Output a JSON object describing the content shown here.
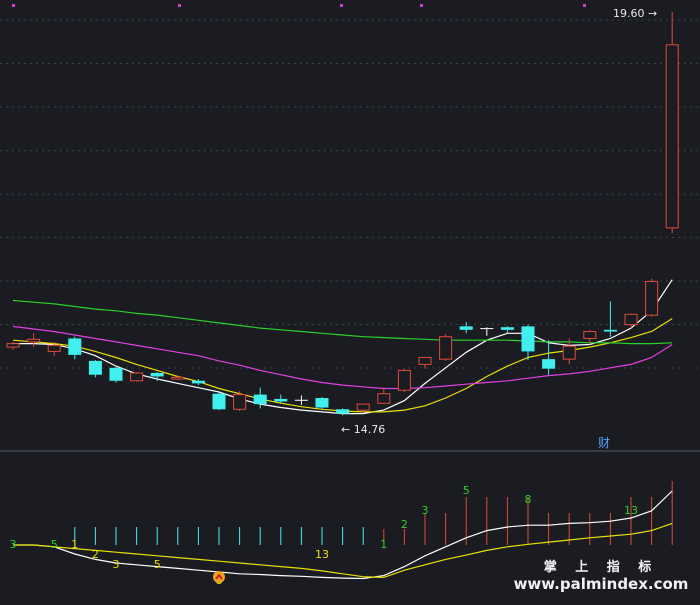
{
  "labels": {
    "high_price": "19.60",
    "low_price": "14.76",
    "finance_marker": "财",
    "watermark_cn": "掌 上 指 标",
    "watermark_url": "www.palmindex.com"
  },
  "colors": {
    "background": "#1a1c22",
    "up": "#e04a3a",
    "down": "#3ff0ee",
    "ma_white": "#ffffff",
    "ma_yellow": "#e8e000",
    "ma_magenta": "#e040e0",
    "ma_green": "#2ad02a",
    "count_green": "#2ad02a",
    "count_yellow": "#e8e000"
  },
  "chart_data": {
    "type": "candlestick",
    "price_axis_extremes": {
      "high": 19.6,
      "low": 14.76
    },
    "candles": [
      {
        "o": 15.76,
        "h": 15.78,
        "l": 15.69,
        "c": 15.72,
        "dir": "up"
      },
      {
        "o": 15.78,
        "h": 15.88,
        "l": 15.72,
        "c": 15.81,
        "dir": "up"
      },
      {
        "o": 15.67,
        "h": 15.78,
        "l": 15.62,
        "c": 15.74,
        "dir": "up"
      },
      {
        "o": 15.82,
        "h": 15.84,
        "l": 15.58,
        "c": 15.63,
        "dir": "down"
      },
      {
        "o": 15.56,
        "h": 15.57,
        "l": 15.37,
        "c": 15.4,
        "dir": "down"
      },
      {
        "o": 15.48,
        "h": 15.5,
        "l": 15.31,
        "c": 15.33,
        "dir": "down"
      },
      {
        "o": 15.33,
        "h": 15.43,
        "l": 15.32,
        "c": 15.42,
        "dir": "up"
      },
      {
        "o": 15.42,
        "h": 15.43,
        "l": 15.33,
        "c": 15.38,
        "dir": "down"
      },
      {
        "o": 15.35,
        "h": 15.39,
        "l": 15.34,
        "c": 15.37,
        "dir": "up"
      },
      {
        "o": 15.33,
        "h": 15.35,
        "l": 15.28,
        "c": 15.3,
        "dir": "down"
      },
      {
        "o": 15.18,
        "h": 15.21,
        "l": 14.99,
        "c": 15.0,
        "dir": "down"
      },
      {
        "o": 15.0,
        "h": 15.21,
        "l": 14.98,
        "c": 15.17,
        "dir": "up"
      },
      {
        "o": 15.17,
        "h": 15.25,
        "l": 15.01,
        "c": 15.06,
        "dir": "down"
      },
      {
        "o": 15.12,
        "h": 15.17,
        "l": 15.07,
        "c": 15.09,
        "dir": "down"
      },
      {
        "o": 15.11,
        "h": 15.16,
        "l": 15.05,
        "c": 15.11,
        "dir": "flat"
      },
      {
        "o": 15.13,
        "h": 15.14,
        "l": 15.0,
        "c": 15.02,
        "dir": "down"
      },
      {
        "o": 15.0,
        "h": 15.01,
        "l": 14.93,
        "c": 14.95,
        "dir": "down"
      },
      {
        "o": 14.99,
        "h": 15.06,
        "l": 14.96,
        "c": 15.06,
        "dir": "up"
      },
      {
        "o": 15.07,
        "h": 15.25,
        "l": 15.06,
        "c": 15.18,
        "dir": "up"
      },
      {
        "o": 15.22,
        "h": 15.47,
        "l": 15.2,
        "c": 15.45,
        "dir": "up"
      },
      {
        "o": 15.52,
        "h": 15.59,
        "l": 15.47,
        "c": 15.6,
        "dir": "up"
      },
      {
        "o": 15.58,
        "h": 15.87,
        "l": 15.56,
        "c": 15.84,
        "dir": "up"
      },
      {
        "o": 15.92,
        "h": 16.01,
        "l": 15.88,
        "c": 15.96,
        "dir": "down"
      },
      {
        "o": 15.93,
        "h": 15.95,
        "l": 15.85,
        "c": 15.94,
        "dir": "flat"
      },
      {
        "o": 15.95,
        "h": 15.96,
        "l": 15.88,
        "c": 15.92,
        "dir": "down"
      },
      {
        "o": 15.96,
        "h": 15.98,
        "l": 15.57,
        "c": 15.67,
        "dir": "down"
      },
      {
        "o": 15.58,
        "h": 15.8,
        "l": 15.4,
        "c": 15.47,
        "dir": "down"
      },
      {
        "o": 15.58,
        "h": 15.82,
        "l": 15.52,
        "c": 15.73,
        "dir": "up"
      },
      {
        "o": 15.82,
        "h": 15.92,
        "l": 15.75,
        "c": 15.9,
        "dir": "up"
      },
      {
        "o": 15.9,
        "h": 16.25,
        "l": 15.84,
        "c": 15.92,
        "dir": "down"
      },
      {
        "o": 15.98,
        "h": 16.11,
        "l": 15.94,
        "c": 16.1,
        "dir": "up"
      },
      {
        "o": 16.09,
        "h": 16.51,
        "l": 16.07,
        "c": 16.48,
        "dir": "up"
      },
      {
        "o": 17.1,
        "h": 19.6,
        "l": 17.04,
        "c": 19.22,
        "dir": "up"
      }
    ],
    "moving_averages": [
      {
        "color": "ma_white",
        "values": [
          15.76,
          15.76,
          15.75,
          15.7,
          15.62,
          15.5,
          15.41,
          15.35,
          15.3,
          15.25,
          15.2,
          15.12,
          15.06,
          15.02,
          14.99,
          14.97,
          14.95,
          14.95,
          14.99,
          15.1,
          15.3,
          15.48,
          15.66,
          15.8,
          15.88,
          15.88,
          15.77,
          15.74,
          15.75,
          15.82,
          15.94,
          16.14,
          16.5
        ]
      },
      {
        "color": "ma_yellow",
        "values": [
          15.8,
          15.78,
          15.76,
          15.73,
          15.67,
          15.6,
          15.52,
          15.45,
          15.38,
          15.32,
          15.24,
          15.18,
          15.12,
          15.07,
          15.03,
          15.0,
          14.98,
          14.97,
          14.97,
          14.99,
          15.04,
          15.13,
          15.24,
          15.38,
          15.5,
          15.6,
          15.65,
          15.68,
          15.72,
          15.77,
          15.83,
          15.9,
          16.05
        ]
      },
      {
        "color": "ma_magenta",
        "values": [
          15.96,
          15.93,
          15.9,
          15.86,
          15.82,
          15.78,
          15.74,
          15.7,
          15.66,
          15.62,
          15.56,
          15.51,
          15.45,
          15.4,
          15.35,
          15.31,
          15.28,
          15.26,
          15.24,
          15.24,
          15.25,
          15.27,
          15.29,
          15.31,
          15.33,
          15.36,
          15.39,
          15.41,
          15.44,
          15.48,
          15.52,
          15.6,
          15.75
        ]
      },
      {
        "color": "ma_green",
        "values": [
          16.26,
          16.24,
          16.22,
          16.19,
          16.16,
          16.14,
          16.11,
          16.09,
          16.06,
          16.03,
          16.0,
          15.97,
          15.94,
          15.92,
          15.9,
          15.88,
          15.86,
          15.84,
          15.83,
          15.82,
          15.81,
          15.8,
          15.8,
          15.8,
          15.8,
          15.79,
          15.78,
          15.78,
          15.77,
          15.77,
          15.76,
          15.76,
          15.77
        ]
      }
    ],
    "sub_indicator": {
      "count_labels": [
        {
          "i": 0,
          "text": "3",
          "color": "count_green",
          "row": "top"
        },
        {
          "i": 2,
          "text": "5",
          "color": "count_green",
          "row": "top"
        },
        {
          "i": 3,
          "text": "1",
          "color": "count_yellow",
          "row": "top"
        },
        {
          "i": 4,
          "text": "2",
          "color": "count_yellow",
          "row": "mid"
        },
        {
          "i": 5,
          "text": "3",
          "color": "count_yellow",
          "row": "low"
        },
        {
          "i": 7,
          "text": "5",
          "color": "count_yellow",
          "row": "low"
        },
        {
          "i": 10,
          "text": "8",
          "color": "count_yellow",
          "row": "bottom"
        },
        {
          "i": 15,
          "text": "13",
          "color": "count_yellow",
          "row": "mid"
        },
        {
          "i": 18,
          "text": "1",
          "color": "count_green",
          "row": "top"
        },
        {
          "i": 19,
          "text": "2",
          "color": "count_green",
          "row": "up1"
        },
        {
          "i": 20,
          "text": "3",
          "color": "count_green",
          "row": "up2"
        },
        {
          "i": 22,
          "text": "5",
          "color": "count_green",
          "row": "up4"
        },
        {
          "i": 25,
          "text": "8",
          "color": "count_green",
          "row": "up3"
        },
        {
          "i": 30,
          "text": "13",
          "color": "count_green",
          "row": "up2"
        }
      ],
      "bars": [
        0,
        0,
        0,
        -1,
        -1,
        -1,
        -1,
        -1,
        -1,
        -1,
        -1,
        -1,
        -1,
        -1,
        -1,
        -1,
        -1,
        -1,
        1,
        1,
        2,
        2,
        3,
        3,
        3,
        3,
        2,
        2,
        2,
        2,
        3,
        3,
        4
      ],
      "white_line": [
        0.0,
        0.0,
        -0.05,
        -0.25,
        -0.4,
        -0.5,
        -0.55,
        -0.6,
        -0.65,
        -0.7,
        -0.75,
        -0.8,
        -0.82,
        -0.85,
        -0.87,
        -0.9,
        -0.92,
        -0.93,
        -0.85,
        -0.6,
        -0.3,
        -0.05,
        0.2,
        0.4,
        0.5,
        0.55,
        0.55,
        0.6,
        0.62,
        0.66,
        0.75,
        0.95,
        1.5
      ],
      "yellow_line": [
        0.0,
        0.0,
        -0.05,
        -0.1,
        -0.15,
        -0.2,
        -0.25,
        -0.3,
        -0.35,
        -0.4,
        -0.45,
        -0.5,
        -0.55,
        -0.6,
        -0.65,
        -0.72,
        -0.8,
        -0.88,
        -0.9,
        -0.7,
        -0.55,
        -0.4,
        -0.28,
        -0.15,
        -0.05,
        0.02,
        0.08,
        0.14,
        0.2,
        0.25,
        0.3,
        0.4,
        0.6
      ]
    }
  }
}
